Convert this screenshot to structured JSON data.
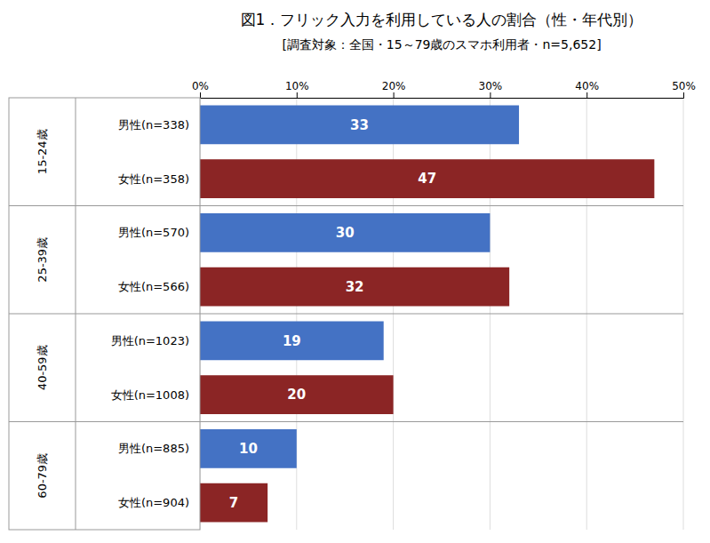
{
  "chart_data": {
    "type": "bar",
    "orientation": "horizontal",
    "title": "図1．フリック入力を利用している人の割合（性・年代別）",
    "subtitle": "[調査対象：全国・15～79歳のスマホ利用者・n=5,652]",
    "categories": [
      "男性(n=338)",
      "女性(n=358)",
      "男性(n=570)",
      "女性(n=566)",
      "男性(n=1023)",
      "女性(n=1008)",
      "男性(n=885)",
      "女性(n=904)"
    ],
    "values": [
      33,
      47,
      30,
      32,
      19,
      20,
      10,
      7
    ],
    "colors": [
      "#4472C4",
      "#8B2525",
      "#4472C4",
      "#8B2525",
      "#4472C4",
      "#8B2525",
      "#4472C4",
      "#8B2525"
    ],
    "groups": [
      "15-24歳",
      "25-39歳",
      "40-59歳",
      "60-79歳"
    ],
    "xlim": [
      0,
      50
    ],
    "xticks": [
      {
        "value": 0,
        "label": "0%"
      },
      {
        "value": 10,
        "label": "10%"
      },
      {
        "value": 20,
        "label": "20%"
      },
      {
        "value": 30,
        "label": "30%"
      },
      {
        "value": 40,
        "label": "40%"
      },
      {
        "value": 50,
        "label": "50%"
      }
    ],
    "grid": true,
    "data_labels": true
  }
}
